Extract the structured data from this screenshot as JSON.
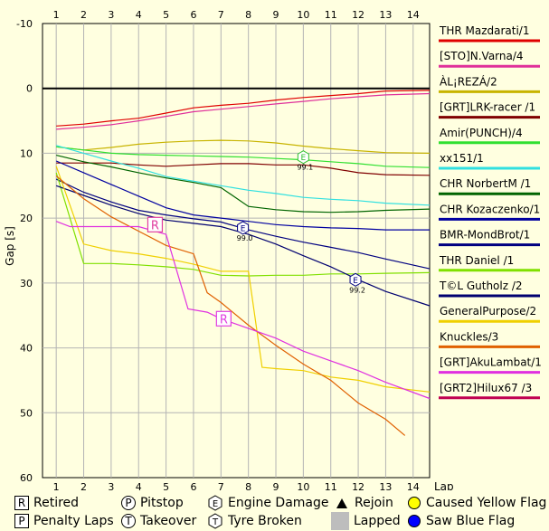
{
  "chart_data": {
    "type": "line",
    "xlabel": "Lap",
    "ylabel": "Gap [s]",
    "xlim": [
      0.5,
      14.6
    ],
    "ylim": [
      -10,
      60
    ],
    "y_inverted": true,
    "x_ticks": [
      1,
      2,
      3,
      4,
      5,
      6,
      7,
      8,
      9,
      10,
      11,
      12,
      13,
      14
    ],
    "y_ticks": [
      -10,
      0,
      10,
      20,
      30,
      40,
      50,
      60
    ],
    "grid": true,
    "legend_position": "right",
    "series": [
      {
        "name": "THR Mazdarati/1",
        "color": "#e00000",
        "x": [
          1,
          2,
          3,
          4,
          5,
          6,
          7,
          8,
          9,
          10,
          11,
          12,
          13,
          14.6
        ],
        "y": [
          5.8,
          5.5,
          5.0,
          4.6,
          3.8,
          3.0,
          2.6,
          2.3,
          1.8,
          1.4,
          1.1,
          0.8,
          0.4,
          0.3
        ]
      },
      {
        "name": "[STO]N.Varna/4",
        "color": "#e0309a",
        "x": [
          1,
          2,
          3,
          4,
          5,
          6,
          7,
          8,
          9,
          10,
          11,
          12,
          13,
          14.6
        ],
        "y": [
          6.3,
          6.0,
          5.6,
          5.0,
          4.3,
          3.6,
          3.2,
          2.8,
          2.4,
          2.0,
          1.6,
          1.3,
          1.0,
          0.8
        ]
      },
      {
        "name": "ÀL¡REZÁ/2",
        "color": "#c8b400",
        "x": [
          1,
          2,
          3,
          4,
          5,
          6,
          7,
          8,
          9,
          10,
          11,
          12,
          13,
          14.6
        ],
        "y": [
          9.0,
          9.5,
          9.1,
          8.6,
          8.3,
          8.1,
          8.0,
          8.1,
          8.4,
          8.9,
          9.3,
          9.6,
          9.9,
          10.0
        ]
      },
      {
        "name": "[GRT]LRK-racer /1",
        "color": "#800000",
        "x": [
          1,
          2,
          3,
          4,
          5,
          6,
          7,
          8,
          9,
          10,
          11,
          12,
          13,
          14.6
        ],
        "y": [
          11.5,
          11.5,
          11.5,
          11.8,
          12.0,
          11.8,
          11.6,
          11.6,
          11.8,
          11.8,
          12.3,
          13.0,
          13.3,
          13.4
        ]
      },
      {
        "name": "Amir(PUNCH)/4",
        "color": "#30e030",
        "x": [
          1,
          2,
          3,
          4,
          5,
          6,
          7,
          8,
          9,
          10,
          11,
          12,
          13,
          14.6
        ],
        "y": [
          9.0,
          9.5,
          10.0,
          10.2,
          10.3,
          10.4,
          10.5,
          10.6,
          10.8,
          11.0,
          11.3,
          11.6,
          12.0,
          12.2
        ]
      },
      {
        "name": "xx151/1",
        "color": "#30e0e0",
        "x": [
          1,
          2,
          3,
          4,
          5,
          6,
          7,
          8,
          9,
          10,
          11,
          12,
          13,
          14.6
        ],
        "y": [
          8.8,
          10.0,
          11.2,
          12.3,
          13.6,
          14.3,
          15.0,
          15.7,
          16.2,
          16.8,
          17.1,
          17.3,
          17.7,
          18.0
        ]
      },
      {
        "name": "CHR NorbertM /1",
        "color": "#006400",
        "x": [
          1,
          2,
          3,
          4,
          5,
          6,
          7,
          8,
          9,
          10,
          11,
          12,
          13,
          14.6
        ],
        "y": [
          10.3,
          11.3,
          12.1,
          13.0,
          13.8,
          14.5,
          15.3,
          18.2,
          18.7,
          19.0,
          19.1,
          19.0,
          18.8,
          18.6
        ]
      },
      {
        "name": "CHR Kozaczenko/1",
        "color": "#0000a0",
        "x": [
          1,
          2,
          3,
          4,
          5,
          6,
          7,
          8,
          9,
          10,
          11,
          12,
          13,
          14.6
        ],
        "y": [
          11.2,
          13.0,
          14.8,
          16.6,
          18.4,
          19.5,
          20.0,
          20.5,
          21.0,
          21.3,
          21.5,
          21.6,
          21.8,
          21.8
        ]
      },
      {
        "name": "BMR-MondBrot/1",
        "color": "#000080",
        "x": [
          1,
          2,
          3,
          4,
          5,
          6,
          7,
          8,
          9,
          10,
          11,
          12,
          13,
          14.6
        ],
        "y": [
          14.0,
          16.0,
          17.5,
          18.8,
          19.5,
          20.1,
          20.6,
          21.8,
          22.8,
          23.7,
          24.5,
          25.3,
          26.3,
          27.8
        ]
      },
      {
        "name": "THR Daniel /1",
        "color": "#80e000",
        "x": [
          1,
          2,
          3,
          4,
          5,
          6,
          7,
          8,
          9,
          10,
          11,
          12,
          13,
          14.6
        ],
        "y": [
          13.0,
          27.0,
          27.0,
          27.2,
          27.5,
          27.9,
          28.8,
          28.9,
          28.8,
          28.8,
          28.6,
          28.6,
          28.5,
          28.4
        ]
      },
      {
        "name": "T©L Gutholz /2",
        "color": "#000070",
        "x": [
          1,
          2,
          3,
          4,
          5,
          6,
          7,
          8,
          9,
          10,
          11,
          12,
          13,
          14.6
        ],
        "y": [
          15.0,
          16.5,
          18.0,
          19.3,
          20.3,
          20.8,
          21.3,
          22.5,
          24.0,
          25.8,
          27.5,
          29.5,
          31.3,
          33.5
        ]
      },
      {
        "name": "GeneralPurpose/2",
        "color": "#f0d000",
        "x": [
          1,
          2,
          3,
          4,
          5,
          6,
          7,
          8,
          8.5,
          9,
          10,
          11,
          12,
          13,
          14.6
        ],
        "y": [
          12.0,
          24.0,
          25.0,
          25.5,
          26.2,
          27.1,
          28.2,
          28.2,
          43.0,
          43.2,
          43.5,
          44.5,
          45.0,
          46.0,
          46.8
        ]
      },
      {
        "name": "Knuckles/3",
        "color": "#e06000",
        "x": [
          1,
          2,
          3,
          4,
          5,
          6,
          6.5,
          7,
          8,
          9,
          10,
          11,
          12,
          13,
          13.7
        ],
        "y": [
          13.5,
          17.0,
          19.8,
          22.0,
          24.2,
          25.5,
          31.5,
          33.0,
          36.5,
          39.6,
          42.5,
          45.0,
          48.5,
          51.0,
          53.5
        ]
      },
      {
        "name": "[GRT]AkuLambat/1",
        "color": "#e030e0",
        "x": [
          1,
          1.5,
          2,
          3,
          4,
          5,
          5.8,
          6.5,
          7,
          8,
          9,
          10,
          11,
          12,
          13,
          14.6
        ],
        "y": [
          20.5,
          21.3,
          21.3,
          21.3,
          21.3,
          22.5,
          34.0,
          34.5,
          35.5,
          37.0,
          38.5,
          40.5,
          42.0,
          43.5,
          45.3,
          47.8
        ]
      },
      {
        "name": "[GRT2]Hilux67 /3",
        "color": "#c00050",
        "x": [],
        "y": []
      }
    ],
    "markers": [
      {
        "type": "R",
        "label": "Retired",
        "lap": 4.6,
        "gap": 21.0,
        "color": "#e040a0"
      },
      {
        "type": "R",
        "label": "Retired",
        "lap": 7.1,
        "gap": 35.5,
        "color": "#e040e0"
      },
      {
        "type": "E",
        "label": "Engine Damage",
        "lap": 10.0,
        "gap": 10.6,
        "color": "#30c030",
        "text": "99.1"
      },
      {
        "type": "E",
        "label": "Engine Damage",
        "lap": 7.8,
        "gap": 21.5,
        "color": "#000080",
        "text": "99.0"
      },
      {
        "type": "E",
        "label": "Engine Damage",
        "lap": 11.9,
        "gap": 29.5,
        "color": "#000080",
        "text": "99.2"
      }
    ]
  },
  "footer_legend": [
    {
      "icon": "box-r",
      "glyph": "R",
      "label": "Retired"
    },
    {
      "icon": "circle-p",
      "glyph": "P",
      "label": "Pitstop"
    },
    {
      "icon": "hex-e",
      "glyph": "E",
      "label": "Engine Damage"
    },
    {
      "icon": "triangle",
      "glyph": "",
      "label": "Rejoin"
    },
    {
      "icon": "yellow-dot",
      "glyph": "",
      "label": "Caused Yellow Flag",
      "color": "#ffff00"
    },
    {
      "icon": "box-p",
      "glyph": "P",
      "label": "Penalty Laps"
    },
    {
      "icon": "circle-t",
      "glyph": "T",
      "label": "Takeover"
    },
    {
      "icon": "hex-t",
      "glyph": "T",
      "label": "Tyre Broken"
    },
    {
      "icon": "grey-square",
      "glyph": "",
      "label": "Lapped",
      "color": "#bdbdbd"
    },
    {
      "icon": "blue-dot",
      "glyph": "",
      "label": "Saw Blue Flag",
      "color": "#0000ff"
    }
  ]
}
